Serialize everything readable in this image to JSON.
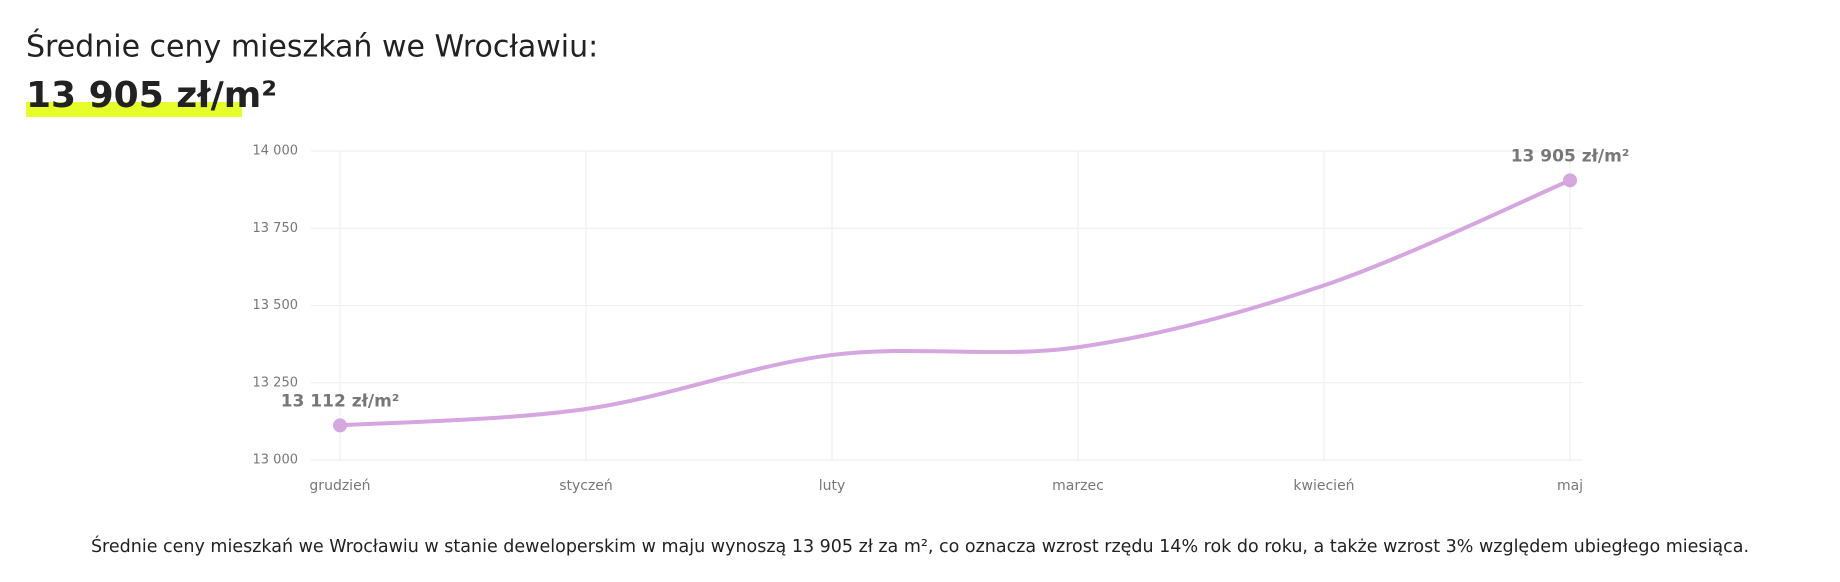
{
  "chart_data": {
    "type": "line",
    "title": "Średnie ceny mieszkań we Wrocławiu:",
    "subtitle": "13 905 zł/m²",
    "categories": [
      "grudzień",
      "styczeń",
      "luty",
      "marzec",
      "kwiecień",
      "maj"
    ],
    "series": [
      {
        "name": "Średnie ceny",
        "color": "#d6a6e0",
        "values": [
          13112,
          13165,
          13340,
          13365,
          13565,
          13905
        ],
        "value_labels": [
          "13 112 zł/m²",
          null,
          null,
          null,
          null,
          "13 905 zł/m²"
        ]
      }
    ],
    "ylim": [
      13000,
      14000
    ],
    "yticks": [
      {
        "value": 13000,
        "label": "13 000"
      },
      {
        "value": 13250,
        "label": "13 250"
      },
      {
        "value": 13500,
        "label": "13 500"
      },
      {
        "value": 13750,
        "label": "13 750"
      },
      {
        "value": 14000,
        "label": "14 000"
      }
    ],
    "grid": true,
    "caption": "Średnie ceny mieszkań we Wrocławiu w stanie deweloperskim w maju wynoszą 13 905 zł za m², co oznacza wzrost rzędu 14% rok do roku, a także wzrost 3% względem ubiegłego miesiąca."
  }
}
